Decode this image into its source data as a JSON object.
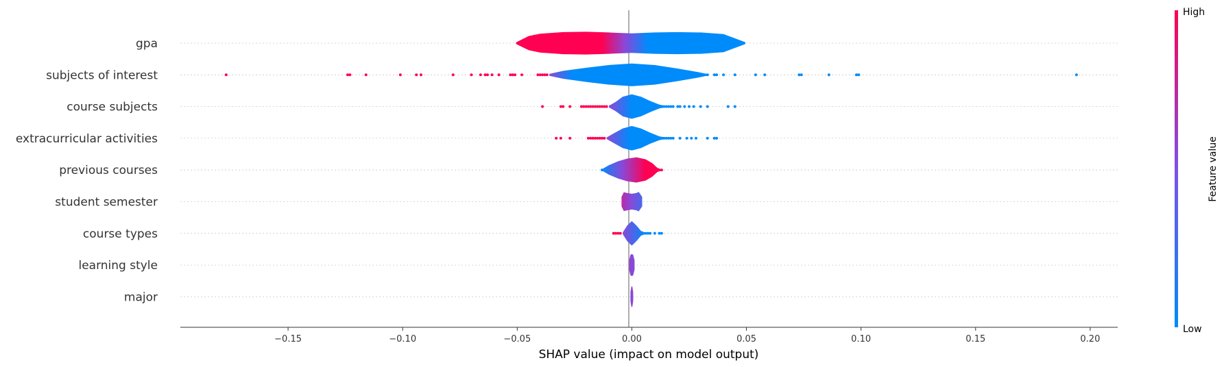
{
  "chart_data": {
    "type": "violin",
    "xlabel": "SHAP value (impact on model output)",
    "xlim": [
      -0.197,
      0.212
    ],
    "xticks": [
      -0.15,
      -0.1,
      -0.05,
      0.0,
      0.05,
      0.1,
      0.15,
      0.2
    ],
    "xtick_labels": [
      "−0.15",
      "−0.10",
      "−0.05",
      "0.00",
      "0.05",
      "0.10",
      "0.15",
      "0.20"
    ],
    "colorbar": {
      "title": "Feature value",
      "high_label": "High",
      "low_label": "Low",
      "high_color": "#ff0052",
      "low_color": "#008bfb"
    },
    "features": [
      {
        "name": "gpa",
        "violin": [
          [
            -0.0505,
            0.05
          ],
          [
            -0.045,
            0.45
          ],
          [
            -0.04,
            0.6
          ],
          [
            -0.03,
            0.7
          ],
          [
            -0.02,
            0.72
          ],
          [
            -0.01,
            0.68
          ],
          [
            0.0,
            0.62
          ],
          [
            0.01,
            0.68
          ],
          [
            0.02,
            0.7
          ],
          [
            0.03,
            0.68
          ],
          [
            0.04,
            0.58
          ],
          [
            0.0495,
            0.06
          ]
        ],
        "split": -0.003,
        "left_color": "#ff0052",
        "right_color": "#008bfb",
        "red_dots": [],
        "blue_dots": []
      },
      {
        "name": "subjects of interest",
        "violin": [
          [
            -0.036,
            0.06
          ],
          [
            -0.03,
            0.25
          ],
          [
            -0.02,
            0.45
          ],
          [
            -0.01,
            0.62
          ],
          [
            0.0,
            0.72
          ],
          [
            0.01,
            0.62
          ],
          [
            0.02,
            0.4
          ],
          [
            0.028,
            0.2
          ],
          [
            0.033,
            0.05
          ]
        ],
        "split": -0.036,
        "left_color": "#ff0052",
        "right_color": "#008bfb",
        "red_dots": [
          -0.177,
          -0.124,
          -0.123,
          -0.116,
          -0.101,
          -0.094,
          -0.092,
          -0.078,
          -0.07,
          -0.066,
          -0.064,
          -0.063,
          -0.061,
          -0.058,
          -0.053,
          -0.052,
          -0.051,
          -0.048,
          -0.041,
          -0.04,
          -0.039,
          -0.038,
          -0.037
        ],
        "blue_dots": [
          0.029,
          0.031,
          0.033,
          0.036,
          0.037,
          0.04,
          0.045,
          0.054,
          0.058,
          0.073,
          0.074,
          0.086,
          0.098,
          0.099,
          0.194
        ]
      },
      {
        "name": "course subjects",
        "violin": [
          [
            -0.01,
            0.05
          ],
          [
            -0.007,
            0.3
          ],
          [
            -0.004,
            0.62
          ],
          [
            0.0,
            0.78
          ],
          [
            0.004,
            0.62
          ],
          [
            0.008,
            0.35
          ],
          [
            0.012,
            0.12
          ],
          [
            0.015,
            0.04
          ]
        ],
        "split": -0.01,
        "left_color": "#ff0052",
        "right_color": "#008bfb",
        "red_dots": [
          -0.039,
          -0.031,
          -0.03,
          -0.027,
          -0.022,
          -0.021,
          -0.02,
          -0.019,
          -0.018,
          -0.017,
          -0.016,
          -0.015,
          -0.014,
          -0.013,
          -0.012,
          -0.011
        ],
        "blue_dots": [
          0.014,
          0.015,
          0.016,
          0.017,
          0.018,
          0.02,
          0.021,
          0.023,
          0.025,
          0.027,
          0.03,
          0.033,
          0.042,
          0.045
        ]
      },
      {
        "name": "extracurricular activities",
        "violin": [
          [
            -0.011,
            0.05
          ],
          [
            -0.008,
            0.3
          ],
          [
            -0.004,
            0.62
          ],
          [
            0.0,
            0.78
          ],
          [
            0.004,
            0.62
          ],
          [
            0.008,
            0.35
          ],
          [
            0.012,
            0.12
          ],
          [
            0.015,
            0.04
          ]
        ],
        "split": -0.011,
        "left_color": "#ff0052",
        "right_color": "#008bfb",
        "red_dots": [
          -0.033,
          -0.031,
          -0.027,
          -0.019,
          -0.018,
          -0.017,
          -0.016,
          -0.015,
          -0.014,
          -0.013,
          -0.012
        ],
        "blue_dots": [
          0.013,
          0.014,
          0.015,
          0.016,
          0.017,
          0.018,
          0.021,
          0.024,
          0.026,
          0.028,
          0.033,
          0.036,
          0.037
        ]
      },
      {
        "name": "previous courses",
        "violin": [
          [
            -0.013,
            0.05
          ],
          [
            -0.01,
            0.3
          ],
          [
            -0.006,
            0.55
          ],
          [
            -0.002,
            0.72
          ],
          [
            0.002,
            0.8
          ],
          [
            0.006,
            0.68
          ],
          [
            0.009,
            0.42
          ],
          [
            0.011,
            0.15
          ],
          [
            0.0125,
            0.04
          ]
        ],
        "split": -0.004,
        "left_color": "#008bfb",
        "right_color": "#ff0052",
        "red_dots": [
          0.011,
          0.012,
          0.013
        ],
        "blue_dots": [
          -0.013,
          -0.012
        ]
      },
      {
        "name": "student semester",
        "violin": [
          [
            -0.0045,
            0.3
          ],
          [
            -0.0035,
            0.6
          ],
          [
            -0.002,
            0.55
          ],
          [
            0.0,
            0.5
          ],
          [
            0.002,
            0.55
          ],
          [
            0.003,
            0.62
          ],
          [
            0.0045,
            0.3
          ]
        ],
        "split": -0.0005,
        "left_color": "#ff0052",
        "right_color": "#008bfb",
        "red_dots": [],
        "blue_dots": []
      },
      {
        "name": "course types",
        "violin": [
          [
            -0.004,
            0.05
          ],
          [
            -0.002,
            0.5
          ],
          [
            0.0,
            0.78
          ],
          [
            0.002,
            0.5
          ],
          [
            0.004,
            0.15
          ],
          [
            0.006,
            0.04
          ]
        ],
        "split": -0.004,
        "left_color": "#ff0052",
        "right_color": "#008bfb",
        "red_dots": [
          -0.008,
          -0.007,
          -0.006,
          -0.005
        ],
        "blue_dots": [
          0.005,
          0.006,
          0.007,
          0.008,
          0.01,
          0.012,
          0.013
        ]
      },
      {
        "name": "learning style",
        "violin": [
          [
            -0.0012,
            0.3
          ],
          [
            -0.0006,
            0.65
          ],
          [
            0.0,
            0.7
          ],
          [
            0.0006,
            0.65
          ],
          [
            0.0012,
            0.3
          ]
        ],
        "split": 0.0,
        "left_color": "#ff0052",
        "right_color": "#008bfb",
        "red_dots": [],
        "blue_dots": []
      },
      {
        "name": "major",
        "violin": [
          [
            -0.0006,
            0.3
          ],
          [
            -0.0002,
            0.65
          ],
          [
            0.0002,
            0.65
          ],
          [
            0.0006,
            0.3
          ]
        ],
        "split": 0.0,
        "left_color": "#ff0052",
        "right_color": "#008bfb",
        "red_dots": [],
        "blue_dots": []
      }
    ]
  }
}
